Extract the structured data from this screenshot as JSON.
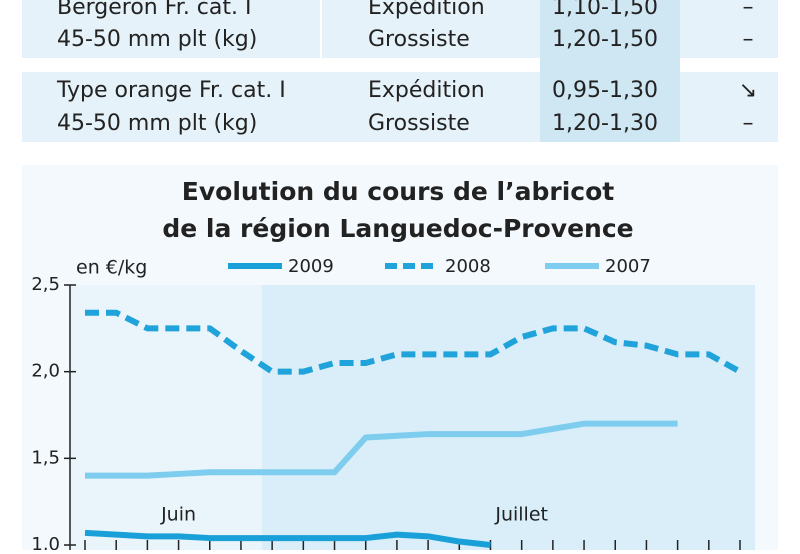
{
  "table": {
    "rows": [
      {
        "product": [
          "Bergeron Fr. cat. I",
          "45-50 mm plt (kg)"
        ],
        "stage": [
          "Expédition",
          "Grossiste"
        ],
        "price": [
          "1,10-1,50",
          "1,20-1,50"
        ],
        "trend": [
          "–",
          "–"
        ]
      },
      {
        "product": [
          "Type orange Fr. cat. I",
          "45-50 mm plt (kg)"
        ],
        "stage": [
          "Expédition",
          "Grossiste"
        ],
        "price": [
          "0,95-1,30",
          "1,20-1,30"
        ],
        "trend": [
          "↘",
          "–"
        ]
      }
    ]
  },
  "chart_data": {
    "type": "line",
    "title": [
      "Evolution du cours de l’abricot",
      "de la région Languedoc-Provence"
    ],
    "y_label": "en €/kg",
    "categories": [
      null,
      null,
      null,
      "Juin",
      null,
      null,
      null,
      null,
      null,
      null,
      null,
      null,
      null,
      null,
      "Juillet",
      null,
      null,
      null,
      null,
      null,
      null,
      null
    ],
    "series": [
      {
        "name": "2009",
        "color": "#1aa0d8",
        "dash": false,
        "values": [
          1.07,
          1.06,
          1.05,
          1.05,
          1.04,
          1.04,
          1.04,
          1.04,
          1.04,
          1.04,
          1.06,
          1.05,
          1.02,
          1.0,
          null,
          null,
          null,
          null,
          null,
          null,
          null,
          null
        ]
      },
      {
        "name": "2008",
        "color": "#1fa3da",
        "dash": true,
        "values": [
          2.34,
          2.34,
          2.25,
          2.25,
          2.25,
          2.12,
          2.0,
          2.0,
          2.05,
          2.05,
          2.1,
          2.1,
          2.1,
          2.1,
          2.2,
          2.25,
          2.25,
          2.17,
          2.15,
          2.1,
          2.1,
          2.0
        ]
      },
      {
        "name": "2007",
        "color": "#7fcdee",
        "dash": false,
        "values": [
          1.4,
          1.4,
          1.4,
          1.41,
          1.42,
          1.42,
          1.42,
          1.42,
          1.42,
          1.62,
          1.63,
          1.64,
          1.64,
          1.64,
          1.64,
          1.67,
          1.7,
          1.7,
          1.7,
          1.7,
          null,
          null
        ]
      }
    ],
    "ylim": [
      1.0,
      2.5
    ],
    "yticks": [
      {
        "value": 1.0,
        "label": "1,0"
      },
      {
        "value": 1.5,
        "label": "1,5"
      },
      {
        "value": 2.0,
        "label": "2,0"
      },
      {
        "value": 2.5,
        "label": "2,5"
      }
    ]
  }
}
